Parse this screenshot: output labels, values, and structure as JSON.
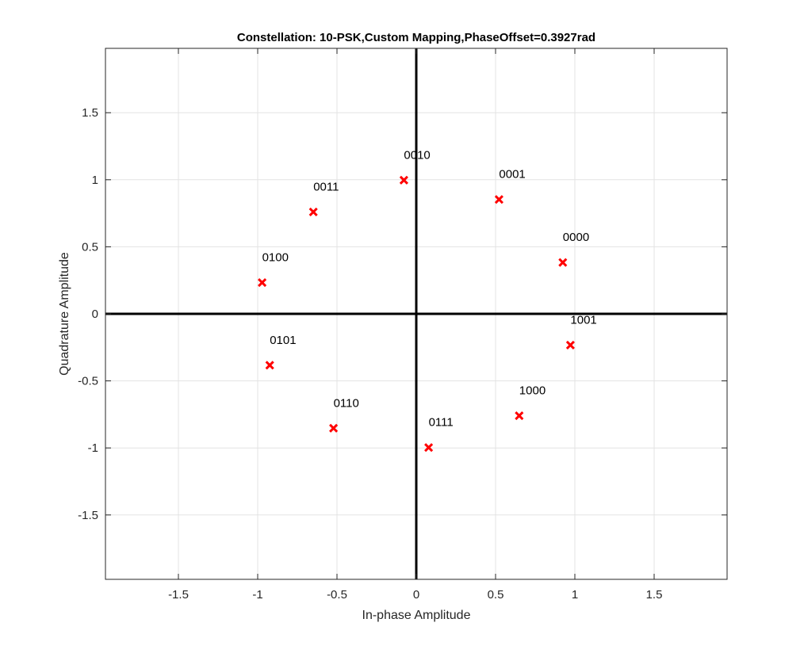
{
  "chart_data": {
    "type": "scatter",
    "title": "Constellation: 10-PSK,Custom Mapping,PhaseOffset=0.3927rad",
    "xlabel": "In-phase Amplitude",
    "ylabel": "Quadrature Amplitude",
    "xlim": [
      -1.96,
      1.96
    ],
    "ylim": [
      -1.98,
      1.98
    ],
    "xticks": [
      -1.5,
      -1,
      -0.5,
      0,
      0.5,
      1,
      1.5
    ],
    "yticks": [
      -1.5,
      -1,
      -0.5,
      0,
      0.5,
      1,
      1.5
    ],
    "xtick_labels": [
      "-1.5",
      "-1",
      "-0.5",
      "0",
      "0.5",
      "1",
      "1.5"
    ],
    "ytick_labels": [
      "-1.5",
      "-1",
      "-0.5",
      "0",
      "0.5",
      "1",
      "1.5"
    ],
    "grid": true,
    "marker": "x",
    "marker_color": "#ff0000",
    "points": [
      {
        "x": 0.924,
        "y": 0.383,
        "label": "0000"
      },
      {
        "x": 0.522,
        "y": 0.853,
        "label": "0001"
      },
      {
        "x": -0.078,
        "y": 0.997,
        "label": "0010"
      },
      {
        "x": -0.649,
        "y": 0.76,
        "label": "0011"
      },
      {
        "x": -0.972,
        "y": 0.233,
        "label": "0100"
      },
      {
        "x": -0.924,
        "y": -0.383,
        "label": "0101"
      },
      {
        "x": -0.522,
        "y": -0.853,
        "label": "0110"
      },
      {
        "x": 0.078,
        "y": -0.997,
        "label": "0111"
      },
      {
        "x": 0.649,
        "y": -0.76,
        "label": "1000"
      },
      {
        "x": 0.972,
        "y": -0.233,
        "label": "1001"
      }
    ]
  }
}
